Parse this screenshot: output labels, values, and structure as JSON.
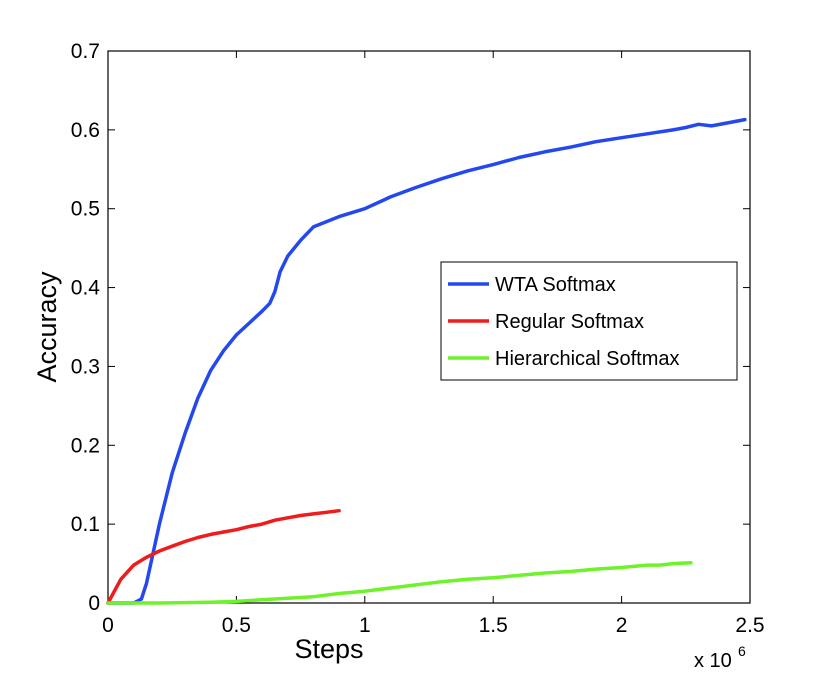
{
  "chart_data": {
    "type": "line",
    "xlabel": "Steps",
    "ylabel": "Accuracy",
    "x_multiplier_label": "x 10",
    "x_multiplier_exponent": "6",
    "xlim": [
      0,
      2.5
    ],
    "ylim": [
      0,
      0.7
    ],
    "x_ticks": [
      "0",
      "0.5",
      "1",
      "1.5",
      "2",
      "2.5"
    ],
    "y_ticks": [
      "0",
      "0.1",
      "0.2",
      "0.3",
      "0.4",
      "0.5",
      "0.6",
      "0.7"
    ],
    "grid": false,
    "legend_position": "center-right",
    "series": [
      {
        "name": "WTA Softmax",
        "color": "#2448f0",
        "x": [
          0,
          0.1,
          0.13,
          0.15,
          0.2,
          0.25,
          0.3,
          0.35,
          0.4,
          0.45,
          0.5,
          0.55,
          0.6,
          0.63,
          0.65,
          0.67,
          0.7,
          0.75,
          0.8,
          0.9,
          1.0,
          1.1,
          1.2,
          1.3,
          1.4,
          1.5,
          1.6,
          1.7,
          1.8,
          1.9,
          2.0,
          2.1,
          2.2,
          2.25,
          2.3,
          2.35,
          2.4,
          2.48
        ],
        "y": [
          0.0,
          0.0,
          0.005,
          0.025,
          0.1,
          0.165,
          0.215,
          0.26,
          0.295,
          0.32,
          0.34,
          0.355,
          0.37,
          0.38,
          0.395,
          0.42,
          0.44,
          0.46,
          0.477,
          0.49,
          0.5,
          0.515,
          0.527,
          0.538,
          0.548,
          0.556,
          0.565,
          0.572,
          0.578,
          0.585,
          0.59,
          0.595,
          0.6,
          0.603,
          0.607,
          0.605,
          0.608,
          0.613
        ]
      },
      {
        "name": "Regular Softmax",
        "color": "#ee1c1c",
        "x": [
          0,
          0.05,
          0.1,
          0.15,
          0.2,
          0.25,
          0.3,
          0.35,
          0.4,
          0.45,
          0.5,
          0.55,
          0.6,
          0.65,
          0.7,
          0.75,
          0.8,
          0.85,
          0.9
        ],
        "y": [
          0.0,
          0.03,
          0.048,
          0.058,
          0.066,
          0.072,
          0.078,
          0.083,
          0.087,
          0.09,
          0.093,
          0.097,
          0.1,
          0.105,
          0.108,
          0.111,
          0.113,
          0.115,
          0.117
        ]
      },
      {
        "name": "Hierarchical Softmax",
        "color": "#6ef22a",
        "x": [
          0,
          0.2,
          0.4,
          0.5,
          0.6,
          0.7,
          0.8,
          0.9,
          1.0,
          1.1,
          1.2,
          1.3,
          1.4,
          1.5,
          1.6,
          1.7,
          1.8,
          1.9,
          2.0,
          2.1,
          2.15,
          2.2,
          2.27
        ],
        "y": [
          0.0,
          0.0,
          0.001,
          0.002,
          0.004,
          0.006,
          0.008,
          0.012,
          0.015,
          0.019,
          0.023,
          0.027,
          0.03,
          0.032,
          0.035,
          0.038,
          0.04,
          0.043,
          0.045,
          0.048,
          0.048,
          0.05,
          0.051
        ]
      }
    ]
  }
}
